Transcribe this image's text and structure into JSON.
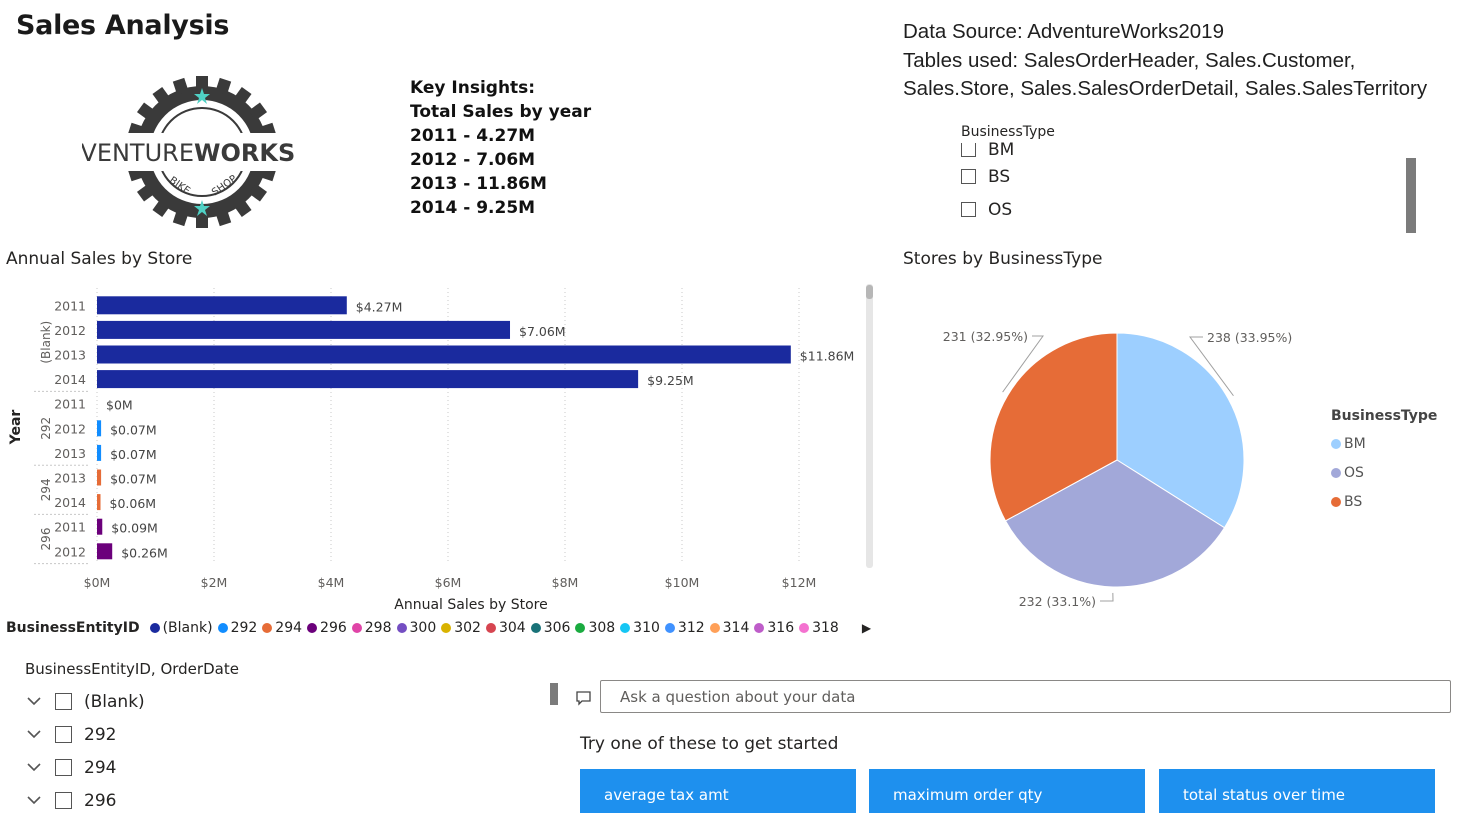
{
  "page": {
    "title": "Sales Analysis"
  },
  "logo": {
    "text_left": "ADVENTURE",
    "text_right": "WORKS",
    "ring_left": "BIKE",
    "ring_right": "SHOP"
  },
  "insights": {
    "heading": "Key Insights:",
    "subheading": "Total Sales by year",
    "lines": [
      "2011 - 4.27M",
      "2012 - 7.06M",
      "2013 - 11.86M",
      "2014 - 9.25M"
    ]
  },
  "source_info": {
    "line1": "Data Source: AdventureWorks2019",
    "line2": "Tables used: SalesOrderHeader, Sales.Customer,",
    "line3": "Sales.Store, Sales.SalesOrderDetail, Sales.SalesTerritory"
  },
  "business_type_slicer": {
    "title": "BusinessType",
    "items": [
      "BM",
      "BS",
      "OS"
    ]
  },
  "bar_visual": {
    "title": "Annual Sales by Store"
  },
  "pie_visual": {
    "title": "Stores by BusinessType"
  },
  "entity_slicer": {
    "title": "BusinessEntityID, OrderDate",
    "items": [
      "(Blank)",
      "292",
      "294",
      "296"
    ]
  },
  "qa": {
    "placeholder": "Ask a question about your data",
    "try_text": "Try one of these to get started",
    "suggestions": [
      "average tax amt",
      "maximum order qty",
      "total status over time"
    ]
  },
  "icons": {
    "qa": "chat-bubble-icon",
    "chevron": "chevron-down-icon",
    "legend_next": "triangle-right-icon"
  },
  "colors": {
    "navy": "#1a2a9e",
    "accent_blue": "#118dff",
    "qa_button": "#1e90ee"
  },
  "chart_data": [
    {
      "type": "bar",
      "orientation": "horizontal",
      "title": "Annual Sales by Store",
      "xlabel": "Annual Sales by Store",
      "ylabel": "Year",
      "xlim": [
        0,
        12.8
      ],
      "x_ticks": [
        "$0M",
        "$2M",
        "$4M",
        "$6M",
        "$8M",
        "$10M",
        "$12M"
      ],
      "x_tick_values": [
        0,
        2,
        4,
        6,
        8,
        10,
        12
      ],
      "groups": [
        {
          "name": "(Blank)",
          "color": "#1a2a9e",
          "rows": [
            {
              "year": "2011",
              "value": 4.27,
              "label": "$4.27M"
            },
            {
              "year": "2012",
              "value": 7.06,
              "label": "$7.06M"
            },
            {
              "year": "2013",
              "value": 11.86,
              "label": "$11.86M"
            },
            {
              "year": "2014",
              "value": 9.25,
              "label": "$9.25M"
            }
          ]
        },
        {
          "name": "292",
          "color": "#118dff",
          "rows": [
            {
              "year": "2011",
              "value": 0,
              "label": "$0M"
            },
            {
              "year": "2012",
              "value": 0.07,
              "label": "$0.07M"
            },
            {
              "year": "2013",
              "value": 0.07,
              "label": "$0.07M"
            }
          ]
        },
        {
          "name": "294",
          "color": "#e66c37",
          "rows": [
            {
              "year": "2013",
              "value": 0.07,
              "label": "$0.07M"
            },
            {
              "year": "2014",
              "value": 0.06,
              "label": "$0.06M"
            }
          ]
        },
        {
          "name": "296",
          "color": "#6b007b",
          "rows": [
            {
              "year": "2011",
              "value": 0.09,
              "label": "$0.09M"
            },
            {
              "year": "2012",
              "value": 0.26,
              "label": "$0.26M"
            }
          ]
        }
      ],
      "legend": {
        "title": "BusinessEntityID",
        "position": "bottom",
        "items": [
          {
            "name": "(Blank)",
            "color": "#1a2a9e"
          },
          {
            "name": "292",
            "color": "#118dff"
          },
          {
            "name": "294",
            "color": "#e66c37"
          },
          {
            "name": "296",
            "color": "#6b007b"
          },
          {
            "name": "298",
            "color": "#e044a7"
          },
          {
            "name": "300",
            "color": "#744ec2"
          },
          {
            "name": "302",
            "color": "#d9b300"
          },
          {
            "name": "304",
            "color": "#d64550"
          },
          {
            "name": "306",
            "color": "#197278"
          },
          {
            "name": "308",
            "color": "#1aab40"
          },
          {
            "name": "310",
            "color": "#15c6f4"
          },
          {
            "name": "312",
            "color": "#4092ff"
          },
          {
            "name": "314",
            "color": "#ffa058"
          },
          {
            "name": "316",
            "color": "#be5dc9"
          },
          {
            "name": "318",
            "color": "#f472d0"
          }
        ]
      },
      "grid": true
    },
    {
      "type": "pie",
      "title": "Stores by BusinessType",
      "slices": [
        {
          "name": "BM",
          "value": 238,
          "label": "238 (33.95%)",
          "color": "#9dcfff"
        },
        {
          "name": "OS",
          "value": 232,
          "label": "232 (33.1%)",
          "color": "#a2a8d9"
        },
        {
          "name": "BS",
          "value": 231,
          "label": "231 (32.95%)",
          "color": "#e66c37"
        }
      ],
      "legend": {
        "title": "BusinessType",
        "position": "right",
        "items": [
          "BM",
          "OS",
          "BS"
        ]
      }
    }
  ]
}
